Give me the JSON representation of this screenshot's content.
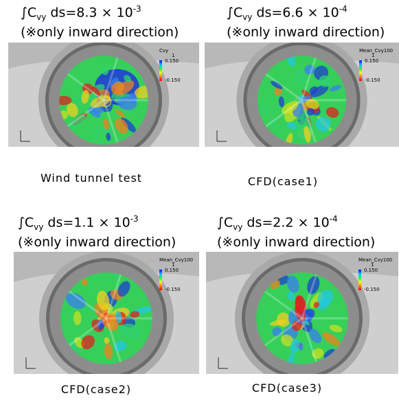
{
  "panels": [
    {
      "formula": {
        "main": "∫C",
        "sub": "vy",
        "rest": " ds=8.3 × 10",
        "sup": "-3"
      },
      "note": "(※only inward direction)",
      "caption": "Wind tunnel test",
      "legend": {
        "title": "Cvy",
        "index": "1",
        "max": "0.150",
        "min": "-0.150"
      }
    },
    {
      "formula": {
        "main": "∫C",
        "sub": "vy",
        "rest": " ds=6.6 × 10",
        "sup": "-4"
      },
      "note": "(※only inward direction)",
      "caption": "CFD(case1)",
      "legend": {
        "title": "Mean_Cvy100",
        "index": "1",
        "max": "0.150",
        "min": "-0.150"
      }
    },
    {
      "formula": {
        "main": "∫C",
        "sub": "vy",
        "rest": " ds=1.1 × 10",
        "sup": "-3"
      },
      "note": "(※only inward direction)",
      "caption": "CFD(case2)",
      "legend": {
        "title": "Mean_Cvy100",
        "index": "1",
        "max": "0.150",
        "min": "-0.150"
      }
    },
    {
      "formula": {
        "main": "∫C",
        "sub": "vy",
        "rest": " ds=2.2 × 10",
        "sup": "-4"
      },
      "note": "(※only inward direction)",
      "caption": "CFD(case3)",
      "legend": {
        "title": "Mean_Cvy100",
        "index": "1",
        "max": "0.150",
        "min": "-0.150"
      }
    }
  ]
}
